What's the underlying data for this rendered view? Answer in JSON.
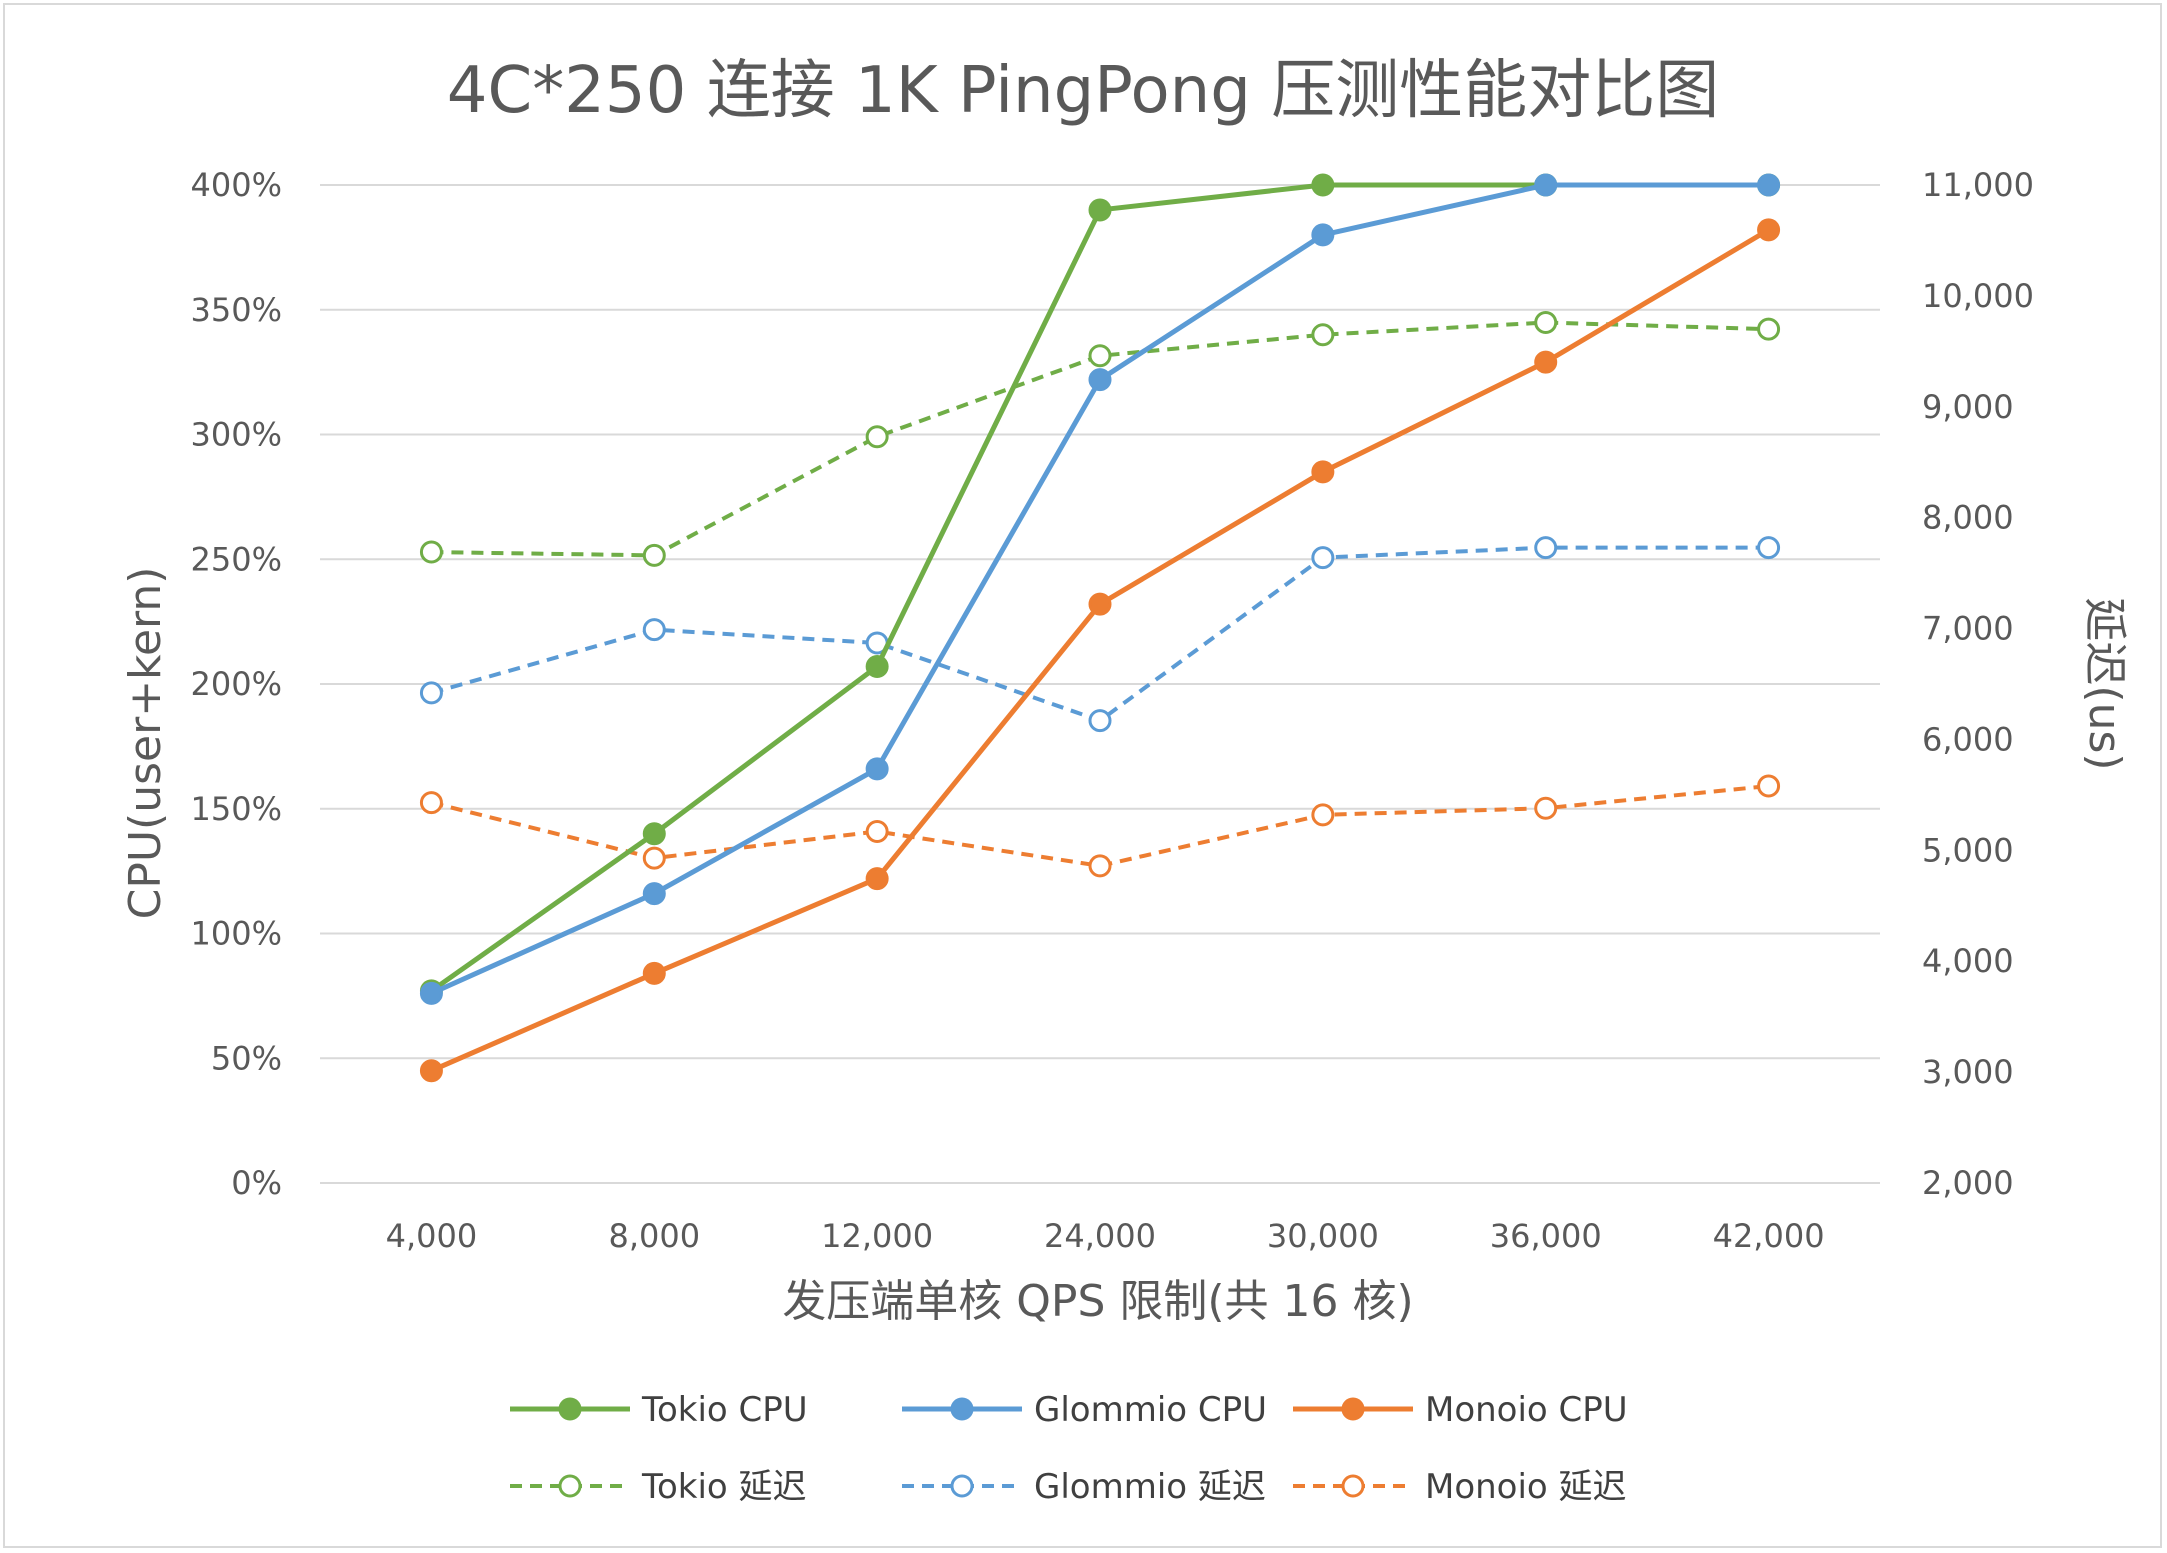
{
  "chart_data": {
    "type": "line",
    "title": "4C*250 连接 1K PingPong 压测性能对比图",
    "xlabel": "发压端单核 QPS 限制(共 16 核)",
    "ylabel": "CPU(user+kern)",
    "y2label": "延迟(us)",
    "categories": [
      "4,000",
      "8,000",
      "12,000",
      "24,000",
      "30,000",
      "36,000",
      "42,000"
    ],
    "y_ticks": [
      "0%",
      "50%",
      "100%",
      "150%",
      "200%",
      "250%",
      "300%",
      "350%",
      "400%"
    ],
    "y2_ticks": [
      "2,000",
      "3,000",
      "4,000",
      "5,000",
      "6,000",
      "7,000",
      "8,000",
      "9,000",
      "10,000",
      "11,000"
    ],
    "ylim": [
      0,
      400
    ],
    "y2lim": [
      2000,
      11000
    ],
    "grid": true,
    "legend_position": "bottom",
    "series": [
      {
        "name": "Tokio CPU",
        "axis": "left",
        "style": "solid",
        "marker": "filled",
        "color": "#70ad47",
        "values": [
          77,
          140,
          207,
          390,
          400,
          400,
          400
        ]
      },
      {
        "name": "Glommio CPU",
        "axis": "left",
        "style": "solid",
        "marker": "filled",
        "color": "#5b9bd5",
        "values": [
          76,
          116,
          166,
          322,
          380,
          400,
          400
        ]
      },
      {
        "name": "Monoio CPU",
        "axis": "left",
        "style": "solid",
        "marker": "filled",
        "color": "#ed7d31",
        "values": [
          45,
          84,
          122,
          232,
          285,
          329,
          382
        ]
      },
      {
        "name": "Tokio 延迟",
        "axis": "right",
        "style": "dashed",
        "marker": "hollow",
        "color": "#70ad47",
        "values": [
          7690,
          7660,
          8730,
          9460,
          9650,
          9760,
          9700
        ]
      },
      {
        "name": "Glommio 延迟",
        "axis": "right",
        "style": "dashed",
        "marker": "hollow",
        "color": "#5b9bd5",
        "values": [
          6420,
          6990,
          6870,
          6170,
          7640,
          7730,
          7730
        ]
      },
      {
        "name": "Monoio 延迟",
        "axis": "right",
        "style": "dashed",
        "marker": "hollow",
        "color": "#ed7d31",
        "values": [
          5430,
          4930,
          5170,
          4860,
          5320,
          5380,
          5580
        ]
      }
    ]
  }
}
